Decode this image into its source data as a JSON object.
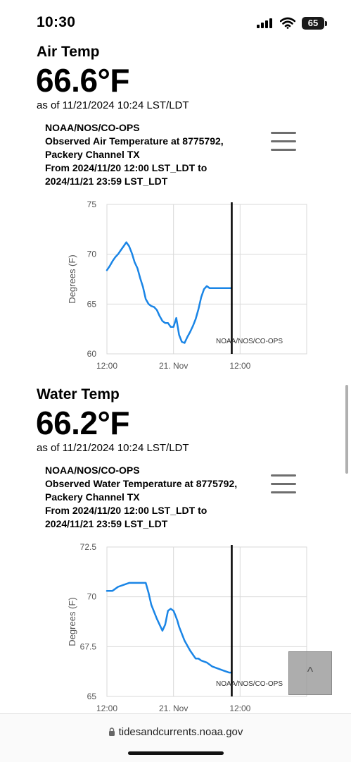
{
  "status_bar": {
    "time": "10:30",
    "battery": "65"
  },
  "air": {
    "label": "Air Temp",
    "value": "66.6°F",
    "as_of": "as of 11/21/2024 10:24 LST/LDT",
    "chart_heading": "NOAA/NOS/CO-OPS\nObserved Air Temperature at 8775792,\nPackery Channel TX\nFrom 2024/11/20 12:00 LST_LDT to\n2024/11/21 23:59 LST_LDT"
  },
  "water": {
    "label": "Water Temp",
    "value": "66.2°F",
    "as_of": "as of 11/21/2024 10:24 LST/LDT",
    "chart_heading": "NOAA/NOS/CO-OPS\nObserved Water Temperature at 8775792,\nPackery Channel TX\nFrom 2024/11/20 12:00 LST_LDT to\n2024/11/21 23:59 LST_LDT"
  },
  "browser": {
    "url": "tidesandcurrents.noaa.gov"
  },
  "icons": {
    "menu": "hamburger-menu-icon",
    "lock": "lock-icon",
    "scroll_top": "chevron-up-icon"
  },
  "colors": {
    "series": "#1a85e6",
    "now_line": "#000000",
    "grid": "#d9d9d9"
  },
  "chart_data": [
    {
      "type": "line",
      "xlabel": "",
      "ylabel": "Degrees (F)",
      "x_ticks": [
        {
          "label": "12:00",
          "hour": 0
        },
        {
          "label": "21. Nov",
          "hour": 12
        },
        {
          "label": "12:00",
          "hour": 24
        }
      ],
      "xlim_hours": [
        0,
        36
      ],
      "ylim": [
        60,
        75
      ],
      "y_ticks": [
        "60",
        "65",
        "70",
        "75"
      ],
      "now_marker_hour": 22.5,
      "credit": "NOAA/NOS/CO-OPS",
      "series": [
        {
          "x_hours": [
            0,
            0.5,
            1,
            1.5,
            2,
            2.5,
            3,
            3.5,
            4,
            4.5,
            5,
            5.5,
            6,
            6.5,
            7,
            7.5,
            8,
            8.5,
            9,
            9.5,
            10,
            10.5,
            11,
            11.5,
            12,
            12.5,
            13,
            13.5,
            14,
            14.5,
            15,
            15.5,
            16,
            16.5,
            17,
            17.5,
            18,
            18.5,
            19,
            19.5,
            20,
            20.5,
            21,
            21.5,
            22,
            22.4
          ],
          "values": [
            68.4,
            68.8,
            69.3,
            69.7,
            70.0,
            70.4,
            70.8,
            71.2,
            70.8,
            70.1,
            69.2,
            68.6,
            67.6,
            66.7,
            65.5,
            65.0,
            64.8,
            64.7,
            64.4,
            63.8,
            63.3,
            63.1,
            63.1,
            62.7,
            62.7,
            63.6,
            61.9,
            61.2,
            61.1,
            61.7,
            62.2,
            62.8,
            63.5,
            64.5,
            65.7,
            66.5,
            66.8,
            66.6,
            66.6,
            66.6,
            66.6,
            66.6,
            66.6,
            66.6,
            66.6,
            66.6
          ]
        }
      ]
    },
    {
      "type": "line",
      "xlabel": "",
      "ylabel": "Degrees (F)",
      "x_ticks": [
        {
          "label": "12:00",
          "hour": 0
        },
        {
          "label": "21. Nov",
          "hour": 12
        },
        {
          "label": "12:00",
          "hour": 24
        }
      ],
      "xlim_hours": [
        0,
        36
      ],
      "ylim": [
        65,
        72.5
      ],
      "y_ticks": [
        "65",
        "67.5",
        "70",
        "72.5"
      ],
      "now_marker_hour": 22.5,
      "credit": "NOAA/NOS/CO-OPS",
      "series": [
        {
          "x_hours": [
            0,
            1,
            2,
            3,
            4,
            5,
            6,
            7,
            7.5,
            8,
            9,
            10,
            10.5,
            11,
            11.5,
            12,
            12.3,
            12.7,
            13,
            14,
            15,
            16,
            16.5,
            17,
            18,
            19,
            20,
            21,
            22,
            22.4
          ],
          "values": [
            70.3,
            70.3,
            70.5,
            70.6,
            70.7,
            70.7,
            70.7,
            70.7,
            70.2,
            69.6,
            68.9,
            68.3,
            68.6,
            69.3,
            69.4,
            69.3,
            69.1,
            68.8,
            68.5,
            67.8,
            67.3,
            66.9,
            66.9,
            66.8,
            66.7,
            66.5,
            66.4,
            66.3,
            66.2,
            66.2
          ]
        }
      ]
    }
  ]
}
